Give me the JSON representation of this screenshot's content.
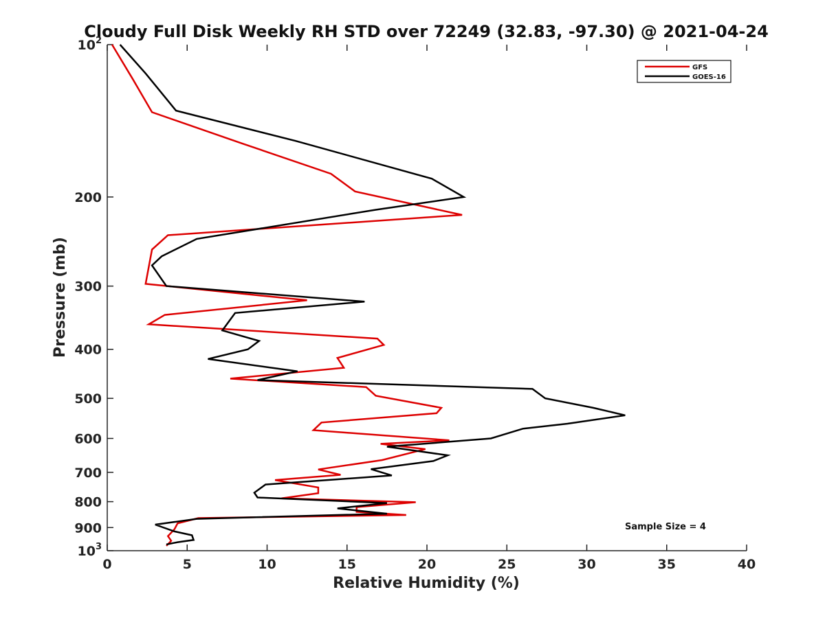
{
  "chart_data": {
    "type": "line",
    "title": "Cloudy Full Disk Weekly RH STD over 72249 (32.83, -97.30) @ 2021-04-24",
    "xlabel": "Relative Humidity (%)",
    "ylabel": "Pressure (mb)",
    "xlim": [
      0,
      40
    ],
    "ylim": [
      100,
      1000
    ],
    "yscale": "log",
    "y_reversed": true,
    "grid": false,
    "legend_position": "top-right",
    "x_ticks": [
      0,
      5,
      10,
      15,
      20,
      25,
      30,
      35,
      40
    ],
    "y_ticks": [
      {
        "value": 100,
        "base": "10",
        "exp": "2"
      },
      {
        "value": 200,
        "base": "200",
        "exp": ""
      },
      {
        "value": 300,
        "base": "300",
        "exp": ""
      },
      {
        "value": 400,
        "base": "400",
        "exp": ""
      },
      {
        "value": 500,
        "base": "500",
        "exp": ""
      },
      {
        "value": 600,
        "base": "600",
        "exp": ""
      },
      {
        "value": 700,
        "base": "700",
        "exp": ""
      },
      {
        "value": 800,
        "base": "800",
        "exp": ""
      },
      {
        "value": 900,
        "base": "900",
        "exp": ""
      },
      {
        "value": 1000,
        "base": "10",
        "exp": "3"
      }
    ],
    "annotation": "Sample Size = 4",
    "series": [
      {
        "name": "GFS",
        "color": "#dd0000",
        "points": [
          [
            0.3,
            100
          ],
          [
            1.6,
            117
          ],
          [
            2.8,
            136
          ],
          [
            8.5,
            157
          ],
          [
            14.0,
            180
          ],
          [
            15.5,
            195
          ],
          [
            22.2,
            217
          ],
          [
            3.8,
            238
          ],
          [
            2.8,
            254
          ],
          [
            2.4,
            297
          ],
          [
            12.5,
            320
          ],
          [
            3.6,
            342
          ],
          [
            2.6,
            357
          ],
          [
            16.9,
            381
          ],
          [
            17.3,
            392
          ],
          [
            14.4,
            416
          ],
          [
            14.8,
            435
          ],
          [
            7.7,
            457
          ],
          [
            16.2,
            475
          ],
          [
            16.8,
            494
          ],
          [
            20.9,
            522
          ],
          [
            20.6,
            535
          ],
          [
            13.4,
            558
          ],
          [
            12.9,
            578
          ],
          [
            21.4,
            605
          ],
          [
            17.1,
            615
          ],
          [
            19.9,
            630
          ],
          [
            17.2,
            662
          ],
          [
            13.2,
            691
          ],
          [
            14.6,
            708
          ],
          [
            10.5,
            725
          ],
          [
            13.2,
            750
          ],
          [
            13.2,
            770
          ],
          [
            10.9,
            788
          ],
          [
            19.3,
            802
          ],
          [
            15.6,
            820
          ],
          [
            15.6,
            838
          ],
          [
            18.7,
            850
          ],
          [
            5.7,
            862
          ],
          [
            4.4,
            883
          ],
          [
            4.2,
            907
          ],
          [
            3.8,
            936
          ],
          [
            4.0,
            956
          ],
          [
            3.7,
            978
          ]
        ]
      },
      {
        "name": "GOES-16",
        "color": "#000000",
        "points": [
          [
            0.8,
            100
          ],
          [
            2.4,
            114
          ],
          [
            4.3,
            135
          ],
          [
            11.8,
            155
          ],
          [
            20.3,
            184
          ],
          [
            22.3,
            200
          ],
          [
            16.8,
            212
          ],
          [
            5.6,
            242
          ],
          [
            3.4,
            262
          ],
          [
            2.8,
            273
          ],
          [
            3.7,
            300
          ],
          [
            16.1,
            322
          ],
          [
            8.0,
            339
          ],
          [
            7.2,
            367
          ],
          [
            9.5,
            385
          ],
          [
            8.8,
            400
          ],
          [
            6.3,
            418
          ],
          [
            11.9,
            442
          ],
          [
            9.4,
            460
          ],
          [
            26.6,
            479
          ],
          [
            27.4,
            500
          ],
          [
            30.4,
            522
          ],
          [
            32.4,
            540
          ],
          [
            28.8,
            561
          ],
          [
            26.0,
            574
          ],
          [
            24.0,
            600
          ],
          [
            17.5,
            623
          ],
          [
            21.3,
            648
          ],
          [
            20.4,
            665
          ],
          [
            16.5,
            690
          ],
          [
            17.8,
            710
          ],
          [
            9.9,
            740
          ],
          [
            9.2,
            768
          ],
          [
            9.4,
            785
          ],
          [
            17.5,
            805
          ],
          [
            14.4,
            825
          ],
          [
            17.5,
            845
          ],
          [
            5.6,
            865
          ],
          [
            3.0,
            888
          ],
          [
            4.2,
            916
          ],
          [
            5.3,
            932
          ],
          [
            5.4,
            952
          ],
          [
            4.4,
            962
          ],
          [
            3.7,
            972
          ]
        ]
      }
    ]
  }
}
